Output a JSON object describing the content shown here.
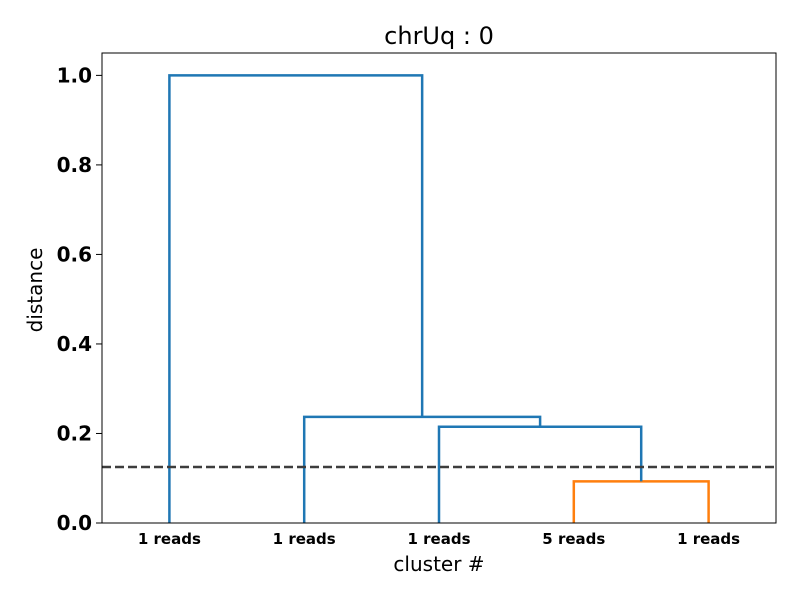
{
  "chart_data": {
    "type": "dendrogram",
    "title": "chrUq : 0",
    "xlabel": "cluster #",
    "ylabel": "distance",
    "ylim": [
      0,
      1.05
    ],
    "yticks": [
      0.0,
      0.2,
      0.4,
      0.6,
      0.8,
      1.0
    ],
    "ytick_labels": [
      "0.0",
      "0.2",
      "0.4",
      "0.6",
      "0.8",
      "1.0"
    ],
    "leaves": [
      "1 reads",
      "1 reads",
      "1 reads",
      "5 reads",
      "1 reads"
    ],
    "threshold": 0.125,
    "colors": {
      "above_threshold": "#1f77b4",
      "cluster_1": "#ff7f0e",
      "threshold_line": "#3d3d3d"
    },
    "merges": [
      {
        "left": 3,
        "right": 4,
        "height": 0.093,
        "color": "#ff7f0e"
      },
      {
        "left": 2,
        "right": "3-4",
        "height": 0.215,
        "color": "#1f77b4"
      },
      {
        "left": 1,
        "right": "2-3-4",
        "height": 0.237,
        "color": "#1f77b4"
      },
      {
        "left": 0,
        "right": "1-2-3-4",
        "height": 1.0,
        "color": "#1f77b4"
      }
    ]
  }
}
